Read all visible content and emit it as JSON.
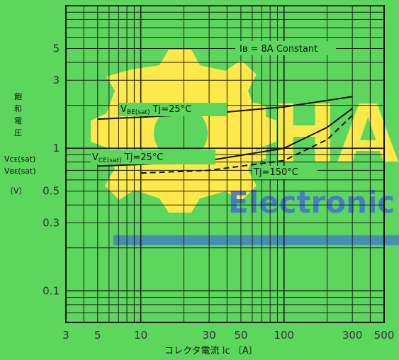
{
  "chart_data": {
    "type": "line",
    "xlabel": "コレクタ電流 Iᴄ 〔A〕",
    "ylabel_lines": [
      "飽",
      "和",
      "電",
      "圧"
    ],
    "ylabel_sym": [
      "Vᴄᴇ(sat)",
      "Vʙᴇ(sat)"
    ],
    "yunit": "〔V〕",
    "x_scale": "log",
    "y_scale": "log",
    "xlim": [
      3,
      500
    ],
    "ylim": [
      0.06,
      10
    ],
    "x_ticks": [
      {
        "value": 3,
        "label": "3"
      },
      {
        "value": 5,
        "label": "5"
      },
      {
        "value": 10,
        "label": "10"
      },
      {
        "value": 30,
        "label": "30"
      },
      {
        "value": 50,
        "label": "50"
      },
      {
        "value": 100,
        "label": "100"
      },
      {
        "value": 300,
        "label": "300"
      },
      {
        "value": 500,
        "label": "500"
      }
    ],
    "y_ticks": [
      {
        "value": 5,
        "label": "5"
      },
      {
        "value": 3,
        "label": "3"
      },
      {
        "value": 1,
        "label": "1"
      },
      {
        "value": 0.5,
        "label": "0.5"
      },
      {
        "value": 0.3,
        "label": "0.3"
      },
      {
        "value": 0.1,
        "label": "0.1"
      }
    ],
    "grid": true,
    "annotation": "Iʙ = 8A  Constant",
    "series": [
      {
        "name": "VBE(sat) Tj=25°C",
        "dash": false,
        "x": [
          5,
          10,
          30,
          100,
          300
        ],
        "y": [
          1.6,
          1.65,
          1.75,
          1.95,
          2.3
        ]
      },
      {
        "name": "VCE(sat) Tj=25°C",
        "dash": false,
        "x": [
          5,
          10,
          30,
          100,
          200,
          300
        ],
        "y": [
          0.75,
          0.77,
          0.82,
          1.0,
          1.4,
          1.9
        ]
      },
      {
        "name": "VCE(sat) Tj=150°C",
        "dash": true,
        "x": [
          10,
          30,
          100,
          200,
          300
        ],
        "y": [
          0.67,
          0.7,
          0.82,
          1.15,
          1.7
        ]
      }
    ],
    "series_labels": [
      {
        "main": "V",
        "sub": "BE(sat)",
        "rest": "Tj=25°C"
      },
      {
        "main": "V",
        "sub": "CE(sat)",
        "rest": "Tj=25°C"
      },
      {
        "main": "",
        "sub": "",
        "rest": "Tj=150°C"
      }
    ]
  },
  "watermark": {
    "text_main": "CHAK",
    "text_sub": "Electronic",
    "green": "#5cd65c",
    "yellow": "#ffe84a",
    "blue": "#3f6fd8"
  },
  "colors": {
    "grid": "#1a1a1a",
    "curve": "#111111"
  }
}
